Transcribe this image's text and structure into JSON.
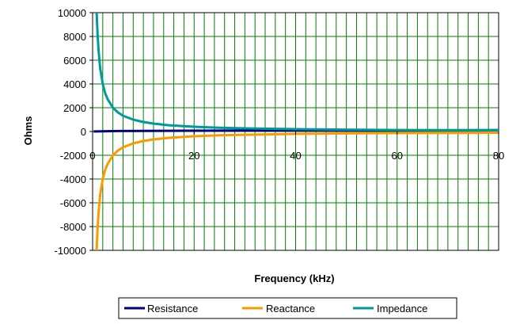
{
  "chart_data": {
    "type": "line",
    "title": "",
    "xlabel": "Frequency (kHz)",
    "ylabel": "Ohms",
    "xlim": [
      0,
      80
    ],
    "ylim": [
      -10000,
      10000
    ],
    "xticks": [
      0,
      20,
      40,
      60,
      80
    ],
    "yticks": [
      -10000,
      -8000,
      -6000,
      -4000,
      -2000,
      0,
      2000,
      4000,
      6000,
      8000,
      10000
    ],
    "xtick_labels": [
      "0",
      "20",
      "40",
      "60",
      "80"
    ],
    "ytick_labels": [
      "-10000",
      "-8000",
      "-6000",
      "-4000",
      "-2000",
      "0",
      "2000",
      "4000",
      "6000",
      "8000",
      "10000"
    ],
    "grid": true,
    "legend_position": "bottom",
    "series": [
      {
        "name": "Resistance",
        "color": "#00007f",
        "x": [
          0.2,
          0.5,
          1,
          2,
          3,
          5,
          10,
          15,
          20,
          30,
          40,
          50,
          60,
          70,
          80
        ],
        "y": [
          0,
          5,
          10,
          20,
          30,
          40,
          50,
          60,
          70,
          80,
          90,
          90,
          100,
          110,
          120
        ]
      },
      {
        "name": "Reactance",
        "color": "#ff9900",
        "x": [
          0.8,
          1,
          1.2,
          1.5,
          2,
          2.5,
          3,
          4,
          5,
          6,
          8,
          10,
          12,
          15,
          20,
          25,
          30,
          40,
          50,
          60,
          70,
          80
        ],
        "y": [
          -10000,
          -8000,
          -6700,
          -5300,
          -4000,
          -3200,
          -2700,
          -2000,
          -1600,
          -1330,
          -1000,
          -800,
          -670,
          -530,
          -400,
          -320,
          -270,
          -200,
          -160,
          -130,
          -110,
          -100
        ]
      },
      {
        "name": "Impedance",
        "color": "#009999",
        "x": [
          0.8,
          1,
          1.2,
          1.5,
          2,
          2.5,
          3,
          4,
          5,
          6,
          8,
          10,
          12,
          15,
          20,
          25,
          30,
          40,
          50,
          60,
          70,
          80
        ],
        "y": [
          10000,
          8000,
          6700,
          5300,
          4000,
          3200,
          2700,
          2000,
          1600,
          1330,
          1000,
          800,
          670,
          530,
          400,
          320,
          270,
          200,
          160,
          130,
          110,
          100
        ]
      }
    ]
  }
}
